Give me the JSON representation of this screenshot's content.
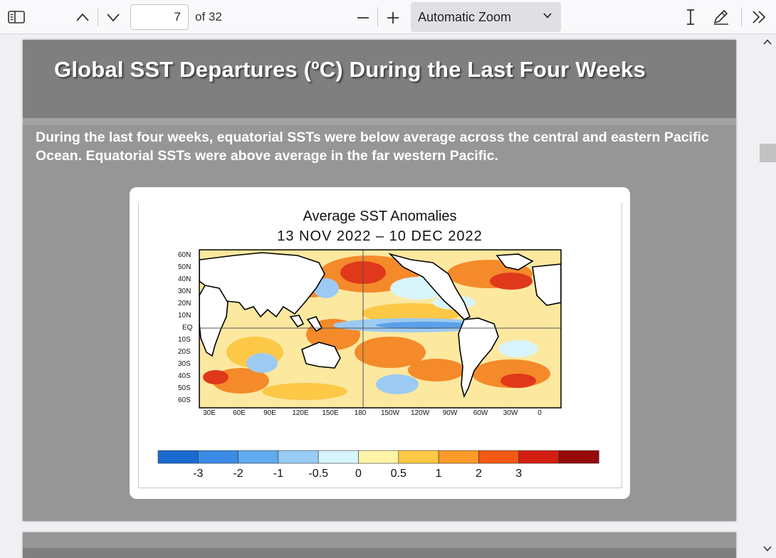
{
  "toolbar": {
    "page_number": "7",
    "page_count_text": "of 32",
    "zoom_value": "Automatic Zoom",
    "icons": [
      "sidebar-toggle-icon",
      "chevron-up-icon",
      "chevron-down-icon",
      "zoom-out-icon",
      "zoom-in-icon",
      "chevron-down-icon",
      "text-cursor-icon",
      "pen-icon",
      "double-chevron-right-icon"
    ]
  },
  "slide": {
    "title": "Global SST Departures (ºC) During the Last Four Weeks",
    "body": "During the last four weeks, equatorial SSTs were below average across the central and eastern Pacific Ocean.   Equatorial SSTs were above average in the far western Pacific."
  },
  "figure": {
    "title_line1": "Average SST Anomalies",
    "title_line2": "13 NOV 2022 – 10 DEC 2022",
    "lat_labels": [
      "60N",
      "50N",
      "40N",
      "30N",
      "20N",
      "10N",
      "EQ",
      "10S",
      "20S",
      "30S",
      "40S",
      "50S",
      "60S"
    ],
    "lon_labels": [
      "30E",
      "60E",
      "90E",
      "120E",
      "150E",
      "180",
      "150W",
      "120W",
      "90W",
      "60W",
      "30W",
      "0"
    ],
    "colorbar": {
      "colors": [
        "#1a6ad0",
        "#3a8ae6",
        "#62aaee",
        "#98ccf4",
        "#d8f4fc",
        "#fdf4a8",
        "#fdc846",
        "#fd9a2a",
        "#f25a16",
        "#d41e12",
        "#960a0a"
      ],
      "labels": [
        "-3",
        "-2",
        "-1",
        "-0.5",
        "0",
        "0.5",
        "1",
        "2",
        "3"
      ]
    },
    "colors": {
      "ocean_neutral": "#fde8a0",
      "warm": "#f48a2a",
      "hot": "#e0381a",
      "cool": "#9ccaf2",
      "cold": "#5aa0ea"
    }
  }
}
